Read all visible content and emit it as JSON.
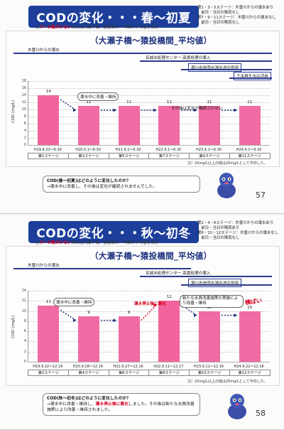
{
  "pages": [
    {
      "title": "CODの変化・・・春～初夏",
      "notes": [
        "第1・3・5ステージ：木曽川からの導水あり",
        "　前日・当日の降雨なし",
        "第7・9・11ステージ：木曽川からの導水なし",
        "　前日・当日の降雨なし"
      ],
      "subnote_prefix": "注",
      "subnote_red": "データ数が少ない",
      "subnote_rest": "場合は大瀬子橋、猿投橋の一年間の平均値を表示",
      "chart_title": "（大瀬子橋～猿投橋間_平均値）",
      "hbars": [
        "木曽川からの導水",
        "名城水処理センター 高度処理の導入",
        "堀川右岸雨水滞水池の供用",
        "下水再生水の活用"
      ],
      "ylabel": "COD (mg/L)",
      "yticks": [
        "18",
        "16",
        "14",
        "12",
        "10",
        "8",
        "6",
        "4",
        "2",
        "0"
      ],
      "annotations": [
        "導水中に改善・維持",
        "その後は変化が確認されない"
      ],
      "footnote": "注）20mg/L以上の値は20mg/Lとして平均した。",
      "question": "COD(春～初夏)はどのように変化したのか？",
      "answer": "→導水中に改善し、その後は変化が確認されませんでした。",
      "page_number": "57"
    },
    {
      "title": "CODの変化・・・秋～初冬",
      "notes": [
        "第2・4・6ステージ：木曽川からの導水あり",
        "　前日・当日の降雨あり",
        "第8・10・12ステージ：木曽川からの導水なし",
        "　前日・当日の降雨なし"
      ],
      "subnote_prefix": "注",
      "subnote_red": "データ数が少ない",
      "subnote_rest": "場合は大瀬子橋、猿投橋の一年間の平均値を表示",
      "chart_title": "（大瀬子橋～猿投橋間_平均値）",
      "hbars": [
        "木曽川からの導水",
        "名城水処理センター 高度処理の導入",
        "堀川右岸雨水滞水池の供用"
      ],
      "ylabel": "COD (mg/L)",
      "yticks": [
        "14",
        "12",
        "10",
        "8",
        "6",
        "4",
        "2",
        "0"
      ],
      "annotations": [
        "導水中に改善・維持",
        "導水停止後に悪化",
        "新たな水質改善施策の実施により改善・維持",
        "横ばい"
      ],
      "footnote": "注）20mg/L以上の値は20mg/Lとして平均した。",
      "question": "COD(秋～初冬)はどのように変化したのか？",
      "answer_a": "→導水中に改善・維持し、",
      "answer_red": "導水停止後に悪化",
      "answer_b": "しました。その後は新たな水質改善施策により改善・維持されました。",
      "page_number": "58"
    }
  ],
  "chart_data": [
    {
      "type": "bar",
      "title": "（大瀬子橋～猿投橋間_平均値）",
      "ylabel": "COD (mg/L)",
      "ylim": [
        0,
        18
      ],
      "categories": [
        "H19.4.22～6.30",
        "H20.4.1～6.30",
        "H21.4.1～6.30",
        "H22.4.1～6.30",
        "H23.4.1～6.30",
        "H24.4.1～6.30"
      ],
      "stages": [
        "第1ステージ",
        "第3ステージ",
        "第5ステージ",
        "第7ステージ",
        "第9ステージ",
        "第11ステージ"
      ],
      "values": [
        14,
        11,
        11,
        11,
        11,
        11
      ]
    },
    {
      "type": "bar",
      "title": "（大瀬子橋～猿投橋間_平均値）",
      "ylabel": "COD (mg/L)",
      "ylim": [
        0,
        14
      ],
      "categories": [
        "H19.9.22～12.16",
        "H20.9.28～12.16",
        "H21.9.27～12.16",
        "H22.9.11～12.17",
        "H23.9.11～12.16",
        "H24.9.22～12.16"
      ],
      "stages": [
        "第2ステージ",
        "第4ステージ",
        "第6ステージ",
        "第8ステージ",
        "第10ステージ",
        "第12ステージ"
      ],
      "values": [
        11,
        9,
        9,
        12,
        10,
        10
      ]
    }
  ]
}
